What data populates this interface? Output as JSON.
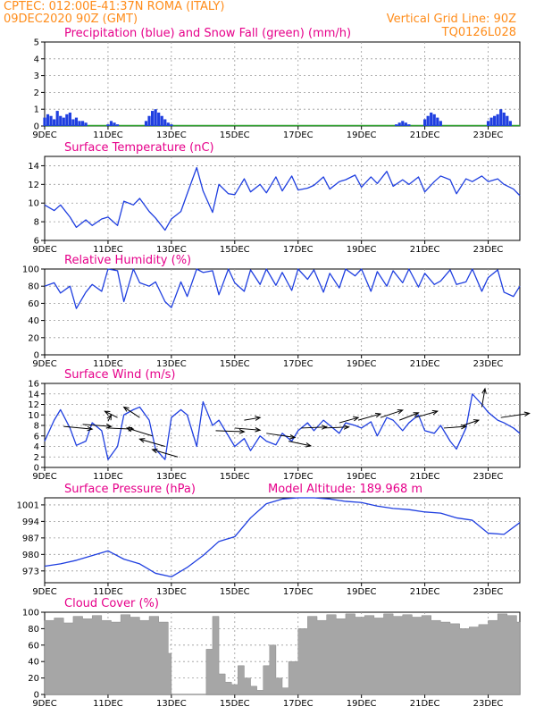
{
  "header": {
    "station_line": "CPTEC:   012:00E-41:37N   ROMA (ITALY)",
    "date_line": "09DEC2020 90Z (GMT)",
    "grid_line": "Vertical Grid Line: 90Z",
    "code": "TQ0126L028"
  },
  "x_axis": {
    "start": "09DEC",
    "end": "24DEC",
    "ticks": [
      "9DEC",
      "11DEC",
      "13DEC",
      "15DEC",
      "17DEC",
      "19DEC",
      "21DEC",
      "23DEC"
    ],
    "tick_days": [
      0,
      2,
      4,
      6,
      8,
      10,
      12,
      14
    ],
    "range_days": [
      0,
      15
    ]
  },
  "colors": {
    "title": "#e6008a",
    "header": "#ff8c1a",
    "line": "#1f3fe0",
    "snow": "#2aa02a",
    "cloud": "#a6a6a6",
    "grid": "#9a9a9a",
    "arrow": "#000000"
  },
  "chart_data": [
    {
      "type": "bar",
      "title": "Precipitation (blue) and Snow Fall (green) (mm/h)",
      "ylim": [
        0,
        5
      ],
      "yticks": [
        0,
        1,
        2,
        3,
        4,
        5
      ],
      "series": [
        {
          "name": "Precipitation",
          "color": "#1f3fe0",
          "x": [
            0.0,
            0.1,
            0.2,
            0.3,
            0.4,
            0.5,
            0.6,
            0.7,
            0.8,
            0.9,
            1.0,
            1.1,
            1.2,
            1.3,
            2.0,
            2.1,
            2.2,
            2.3,
            3.2,
            3.3,
            3.4,
            3.5,
            3.6,
            3.7,
            3.8,
            3.9,
            4.0,
            11.1,
            11.2,
            11.3,
            11.4,
            11.5,
            12.0,
            12.1,
            12.2,
            12.3,
            12.4,
            12.5,
            14.0,
            14.1,
            14.2,
            14.3,
            14.4,
            14.5,
            14.6,
            14.7
          ],
          "values": [
            0.5,
            0.7,
            0.6,
            0.4,
            0.9,
            0.6,
            0.5,
            0.7,
            0.8,
            0.4,
            0.5,
            0.3,
            0.3,
            0.2,
            0.1,
            0.3,
            0.2,
            0.1,
            0.3,
            0.6,
            0.9,
            1.0,
            0.8,
            0.6,
            0.4,
            0.2,
            0.1,
            0.1,
            0.2,
            0.3,
            0.2,
            0.1,
            0.4,
            0.6,
            0.8,
            0.7,
            0.5,
            0.3,
            0.3,
            0.5,
            0.6,
            0.7,
            1.0,
            0.8,
            0.6,
            0.3
          ]
        },
        {
          "name": "Snow Fall",
          "color": "#2aa02a",
          "x": [],
          "values": []
        }
      ]
    },
    {
      "type": "line",
      "title": "Surface Temperature (nC)",
      "ylim": [
        6,
        15
      ],
      "yticks": [
        6,
        8,
        10,
        12,
        14
      ],
      "series": [
        {
          "name": "Temperature",
          "x": [
            0,
            0.3,
            0.5,
            0.8,
            1.0,
            1.3,
            1.5,
            1.8,
            2.0,
            2.3,
            2.5,
            2.8,
            3.0,
            3.3,
            3.5,
            3.8,
            4.0,
            4.3,
            4.5,
            4.8,
            5.0,
            5.3,
            5.5,
            5.8,
            6.0,
            6.3,
            6.5,
            6.8,
            7.0,
            7.3,
            7.5,
            7.8,
            8.0,
            8.3,
            8.5,
            8.8,
            9.0,
            9.3,
            9.5,
            9.8,
            10.0,
            10.3,
            10.5,
            10.8,
            11.0,
            11.3,
            11.5,
            11.8,
            12.0,
            12.3,
            12.5,
            12.8,
            13.0,
            13.3,
            13.5,
            13.8,
            14.0,
            14.3,
            14.5,
            14.8,
            15.0
          ],
          "values": [
            9.8,
            9.2,
            9.8,
            8.5,
            7.4,
            8.2,
            7.6,
            8.3,
            8.5,
            7.6,
            10.2,
            9.8,
            10.5,
            9.1,
            8.4,
            7.1,
            8.3,
            9.1,
            11.0,
            13.8,
            11.3,
            9.0,
            12.0,
            11.0,
            10.9,
            12.6,
            11.2,
            12.0,
            11.1,
            12.8,
            11.3,
            12.9,
            11.4,
            11.6,
            11.9,
            12.8,
            11.5,
            12.3,
            12.5,
            13.0,
            11.7,
            12.8,
            12.1,
            13.4,
            11.8,
            12.5,
            12.0,
            12.8,
            11.2,
            12.3,
            12.9,
            12.5,
            11.0,
            12.6,
            12.3,
            12.9,
            12.3,
            12.6,
            12.0,
            11.5,
            10.8
          ]
        }
      ]
    },
    {
      "type": "line",
      "title": "Relative Humidity (%)",
      "ylim": [
        0,
        100
      ],
      "yticks": [
        0,
        20,
        40,
        60,
        80,
        100
      ],
      "series": [
        {
          "name": "Relative Humidity",
          "x": [
            0,
            0.3,
            0.5,
            0.8,
            1.0,
            1.3,
            1.5,
            1.8,
            2.0,
            2.3,
            2.5,
            2.8,
            3.0,
            3.3,
            3.5,
            3.8,
            4.0,
            4.3,
            4.5,
            4.8,
            5.0,
            5.3,
            5.5,
            5.8,
            6.0,
            6.3,
            6.5,
            6.8,
            7.0,
            7.3,
            7.5,
            7.8,
            8.0,
            8.3,
            8.5,
            8.8,
            9.0,
            9.3,
            9.5,
            9.8,
            10.0,
            10.3,
            10.5,
            10.8,
            11.0,
            11.3,
            11.5,
            11.8,
            12.0,
            12.3,
            12.5,
            12.8,
            13.0,
            13.3,
            13.5,
            13.8,
            14.0,
            14.3,
            14.5,
            14.8,
            15.0
          ],
          "values": [
            80,
            84,
            72,
            80,
            54,
            73,
            82,
            74,
            100,
            98,
            62,
            100,
            84,
            80,
            85,
            62,
            55,
            85,
            68,
            100,
            96,
            98,
            70,
            100,
            84,
            74,
            99,
            82,
            100,
            81,
            96,
            75,
            100,
            88,
            99,
            73,
            95,
            78,
            100,
            92,
            100,
            74,
            97,
            80,
            98,
            84,
            100,
            79,
            95,
            82,
            86,
            99,
            82,
            85,
            100,
            74,
            90,
            99,
            73,
            68,
            80
          ]
        }
      ]
    },
    {
      "type": "line",
      "title": "Surface Wind (m/s)",
      "ylim": [
        0,
        16
      ],
      "yticks": [
        0,
        2,
        4,
        6,
        8,
        10,
        12,
        14,
        16
      ],
      "series": [
        {
          "name": "Wind Speed",
          "x": [
            0,
            0.3,
            0.5,
            0.8,
            1.0,
            1.3,
            1.5,
            1.8,
            2.0,
            2.3,
            2.5,
            2.8,
            3.0,
            3.3,
            3.5,
            3.8,
            4.0,
            4.3,
            4.5,
            4.8,
            5.0,
            5.3,
            5.5,
            5.8,
            6.0,
            6.3,
            6.5,
            6.8,
            7.0,
            7.3,
            7.5,
            7.8,
            8.0,
            8.3,
            8.5,
            8.8,
            9.0,
            9.3,
            9.5,
            9.8,
            10.0,
            10.3,
            10.5,
            10.8,
            11.0,
            11.3,
            11.5,
            11.8,
            12.0,
            12.3,
            12.5,
            12.8,
            13.0,
            13.3,
            13.5,
            13.8,
            14.0,
            14.3,
            14.5,
            14.8,
            15.0
          ],
          "values": [
            5.0,
            9.0,
            11.0,
            7.5,
            4.2,
            5.0,
            8.5,
            7.0,
            1.5,
            4.0,
            10.0,
            11.0,
            11.5,
            9.0,
            3.5,
            1.5,
            9.5,
            11.0,
            10.0,
            4.0,
            12.5,
            8.0,
            9.0,
            6.0,
            4.0,
            5.5,
            3.2,
            6.0,
            5.0,
            4.3,
            6.5,
            5.0,
            7.0,
            8.5,
            7.0,
            9.0,
            8.0,
            6.5,
            8.5,
            8.0,
            7.5,
            8.7,
            6.0,
            9.5,
            9.0,
            7.0,
            8.5,
            10.0,
            7.0,
            6.5,
            8.0,
            5.0,
            3.5,
            7.5,
            14.0,
            12.0,
            10.5,
            9.0,
            8.5,
            7.5,
            6.5
          ]
        }
      ],
      "arrows": [
        {
          "x": 0.6,
          "y": 7.8,
          "dx": 0.9,
          "dy": -0.5
        },
        {
          "x": 1.2,
          "y": 8.2,
          "dx": 0.9,
          "dy": -0.4
        },
        {
          "x": 2.0,
          "y": 7.5,
          "dx": 0.8,
          "dy": -0.2
        },
        {
          "x": 2.0,
          "y": 8.8,
          "dx": 0.1,
          "dy": 1.2
        },
        {
          "x": 2.3,
          "y": 9.5,
          "dx": -0.4,
          "dy": 1.2
        },
        {
          "x": 3.0,
          "y": 9.5,
          "dx": -0.5,
          "dy": 2.0
        },
        {
          "x": 3.4,
          "y": 6.0,
          "dx": -0.8,
          "dy": 1.5
        },
        {
          "x": 3.8,
          "y": 4.0,
          "dx": -0.8,
          "dy": 1.4
        },
        {
          "x": 4.2,
          "y": 2.0,
          "dx": -0.8,
          "dy": 1.4
        },
        {
          "x": 5.4,
          "y": 7.0,
          "dx": 0.9,
          "dy": -0.2
        },
        {
          "x": 6.0,
          "y": 7.5,
          "dx": 0.8,
          "dy": -0.4
        },
        {
          "x": 6.3,
          "y": 9.0,
          "dx": 0.5,
          "dy": 0.5
        },
        {
          "x": 7.0,
          "y": 6.5,
          "dx": 0.9,
          "dy": -0.8
        },
        {
          "x": 7.7,
          "y": 5.0,
          "dx": 0.7,
          "dy": -0.9
        },
        {
          "x": 8.1,
          "y": 7.5,
          "dx": 0.8,
          "dy": 0.2
        },
        {
          "x": 8.8,
          "y": 7.5,
          "dx": 0.8,
          "dy": 0.2
        },
        {
          "x": 9.3,
          "y": 8.5,
          "dx": 0.6,
          "dy": 1.0
        },
        {
          "x": 9.9,
          "y": 9.0,
          "dx": 0.7,
          "dy": 1.2
        },
        {
          "x": 10.6,
          "y": 9.5,
          "dx": 0.7,
          "dy": 1.4
        },
        {
          "x": 11.2,
          "y": 9.0,
          "dx": 0.6,
          "dy": 1.4
        },
        {
          "x": 11.7,
          "y": 9.5,
          "dx": 0.7,
          "dy": 1.2
        },
        {
          "x": 12.6,
          "y": 7.5,
          "dx": 0.7,
          "dy": 0.3
        },
        {
          "x": 13.2,
          "y": 8.0,
          "dx": 0.5,
          "dy": 1.0
        },
        {
          "x": 13.8,
          "y": 11.5,
          "dx": 0.1,
          "dy": 3.5
        },
        {
          "x": 14.4,
          "y": 9.5,
          "dx": 0.9,
          "dy": 0.8
        }
      ]
    },
    {
      "type": "line",
      "title": "Surface Pressure (hPa)",
      "subtitle": "Model Altitude: 189.968  m",
      "ylim": [
        968,
        1004
      ],
      "yticks": [
        973,
        980,
        987,
        994,
        1001
      ],
      "series": [
        {
          "name": "Pressure",
          "x": [
            0,
            0.5,
            1.0,
            1.5,
            2.0,
            2.5,
            3.0,
            3.5,
            4.0,
            4.5,
            5.0,
            5.5,
            6.0,
            6.5,
            7.0,
            7.5,
            8.0,
            8.5,
            9.0,
            9.5,
            10.0,
            10.5,
            11.0,
            11.5,
            12.0,
            12.5,
            13.0,
            13.5,
            14.0,
            14.5,
            15.0
          ],
          "values": [
            975.0,
            976.0,
            977.5,
            979.5,
            981.5,
            978.0,
            976.0,
            972.0,
            970.5,
            974.5,
            979.5,
            985.5,
            987.5,
            995.5,
            1001.5,
            1003.5,
            1004.0,
            1004.0,
            1003.5,
            1002.5,
            1002.0,
            1000.5,
            999.5,
            999.0,
            998.0,
            997.5,
            995.5,
            994.5,
            989.0,
            988.5,
            993.5
          ]
        }
      ]
    },
    {
      "type": "area",
      "title": "Cloud Cover (%)",
      "ylim": [
        0,
        100
      ],
      "yticks": [
        0,
        20,
        40,
        60,
        80,
        100
      ],
      "series": [
        {
          "name": "Cloud Cover",
          "x": [
            0,
            0.3,
            0.6,
            0.9,
            1.2,
            1.5,
            1.8,
            2.1,
            2.4,
            2.7,
            3.0,
            3.3,
            3.6,
            3.9,
            4.0,
            4.2,
            4.5,
            4.8,
            5.0,
            5.1,
            5.3,
            5.5,
            5.7,
            5.9,
            6.1,
            6.3,
            6.5,
            6.7,
            6.9,
            7.1,
            7.3,
            7.5,
            7.7,
            8.0,
            8.3,
            8.6,
            8.9,
            9.2,
            9.5,
            9.8,
            10.1,
            10.4,
            10.7,
            11.0,
            11.3,
            11.6,
            11.9,
            12.2,
            12.5,
            12.8,
            13.1,
            13.4,
            13.7,
            14.0,
            14.3,
            14.6,
            14.9
          ],
          "values": [
            90,
            93,
            87,
            95,
            92,
            96,
            90,
            88,
            97,
            94,
            90,
            95,
            88,
            50,
            0,
            0,
            0,
            0,
            0,
            55,
            95,
            25,
            15,
            12,
            35,
            20,
            10,
            5,
            35,
            60,
            20,
            8,
            40,
            80,
            95,
            90,
            97,
            92,
            98,
            94,
            96,
            93,
            98,
            95,
            97,
            94,
            96,
            90,
            88,
            86,
            80,
            82,
            85,
            90,
            98,
            96,
            88
          ]
        }
      ]
    }
  ]
}
